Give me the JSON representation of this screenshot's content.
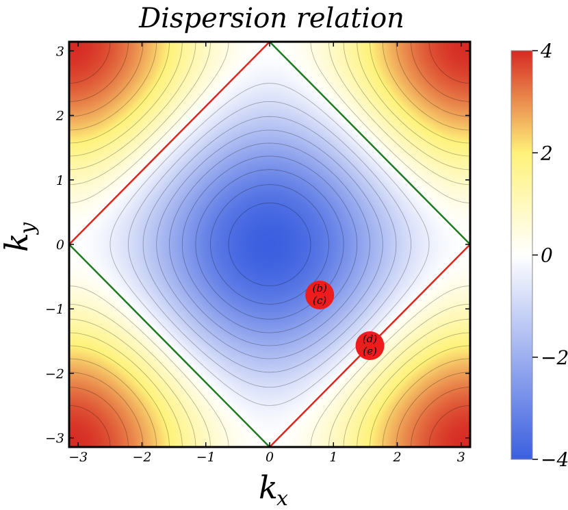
{
  "chart_data": {
    "type": "heatmap",
    "title": "Dispersion relation",
    "xlabel": "k",
    "xlabel_sub": "x",
    "ylabel": "k",
    "ylabel_sub": "y",
    "xlim": [
      -3.14159,
      3.14159
    ],
    "ylim": [
      -3.14159,
      3.14159
    ],
    "x_ticks": [
      -3,
      -2,
      -1,
      0,
      1,
      2,
      3
    ],
    "y_ticks": [
      -3,
      -2,
      -1,
      0,
      1,
      2,
      3
    ],
    "function": "-2(cos kx + cos ky)",
    "contour_count": 20,
    "colorbar": {
      "min": -4,
      "max": 4,
      "ticks": [
        -4,
        -2,
        0,
        2,
        4
      ],
      "colors": [
        "#3b5fe0",
        "#ffffff",
        "#fff27a",
        "#d62a23"
      ]
    },
    "lines": [
      {
        "name": "red",
        "color": "#e1241b",
        "points": [
          [
            -3.14159,
            0
          ],
          [
            0,
            3.14159
          ]
        ]
      },
      {
        "name": "red",
        "color": "#e1241b",
        "points": [
          [
            0,
            -3.14159
          ],
          [
            3.14159,
            0
          ]
        ]
      },
      {
        "name": "green",
        "color": "#1f7a1f",
        "points": [
          [
            0,
            3.14159
          ],
          [
            3.14159,
            0
          ]
        ]
      },
      {
        "name": "green",
        "color": "#1f7a1f",
        "points": [
          [
            -3.14159,
            0
          ],
          [
            0,
            -3.14159
          ]
        ]
      }
    ],
    "markers": [
      {
        "x": 0.785,
        "y": -0.785,
        "labels": [
          "(b)",
          "(c)"
        ],
        "color": "#ee1c1c"
      },
      {
        "x": 1.571,
        "y": -1.571,
        "labels": [
          "(d)",
          "(e)"
        ],
        "color": "#ee1c1c"
      }
    ]
  }
}
